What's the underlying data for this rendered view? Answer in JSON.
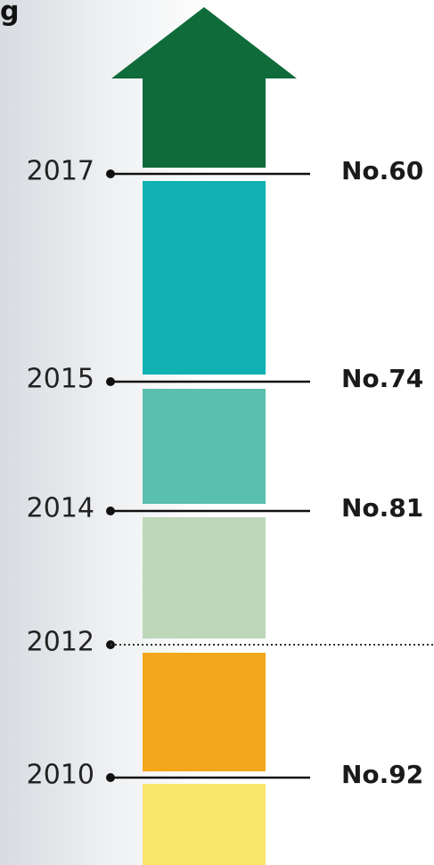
{
  "header_fragment": "g",
  "milestones": [
    {
      "year": "2017",
      "rank": "No.60"
    },
    {
      "year": "2015",
      "rank": "No.74"
    },
    {
      "year": "2014",
      "rank": "No.81"
    },
    {
      "year": "2012"
    },
    {
      "year": "2010",
      "rank": "No.92"
    }
  ]
}
